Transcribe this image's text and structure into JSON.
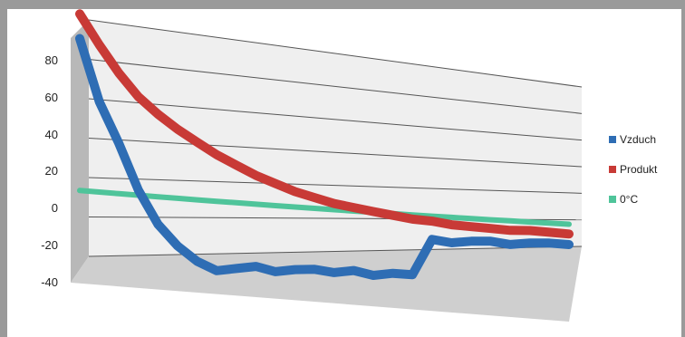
{
  "chart_data": {
    "type": "line",
    "title": "",
    "xlabel": "",
    "ylabel": "",
    "ylim": [
      -40,
      80
    ],
    "yticks": [
      "80",
      "60",
      "40",
      "20",
      "0",
      "-20",
      "-40"
    ],
    "grid": true,
    "legend_position": "right",
    "x": [
      0,
      1,
      2,
      3,
      4,
      5,
      6,
      7,
      8,
      9,
      10,
      11,
      12,
      13,
      14,
      15,
      16,
      17,
      18,
      19,
      20,
      21,
      22,
      23,
      24,
      25
    ],
    "series": [
      {
        "name": "Vzduch",
        "color": "#2e6db4",
        "values": [
          78,
          48,
          28,
          5,
          -12,
          -23,
          -31,
          -36,
          -35,
          -34,
          -37,
          -36,
          -36,
          -38,
          -37,
          -40,
          -39,
          -40,
          -19,
          -21,
          -20,
          -20,
          -22,
          -21,
          -21,
          -22
        ]
      },
      {
        "name": "Produkt",
        "color": "#c83a36",
        "values": [
          90,
          76,
          63,
          52,
          44,
          37,
          31,
          25,
          20,
          15,
          11,
          7,
          4,
          1,
          -1,
          -3,
          -5,
          -7,
          -8,
          -10,
          -11,
          -12,
          -13,
          -13,
          -14,
          -15
        ]
      },
      {
        "name": "0°C",
        "color": "#4fc49a",
        "values": [
          4,
          3.5,
          3,
          2.5,
          2,
          1.5,
          1,
          0.5,
          0,
          -0.5,
          -1,
          -1.5,
          -2,
          -2.5,
          -3,
          -3.5,
          -4,
          -4.5,
          -5,
          -5.5,
          -6,
          -6.5,
          -7,
          -7.5,
          -8,
          -8.5
        ]
      }
    ]
  }
}
